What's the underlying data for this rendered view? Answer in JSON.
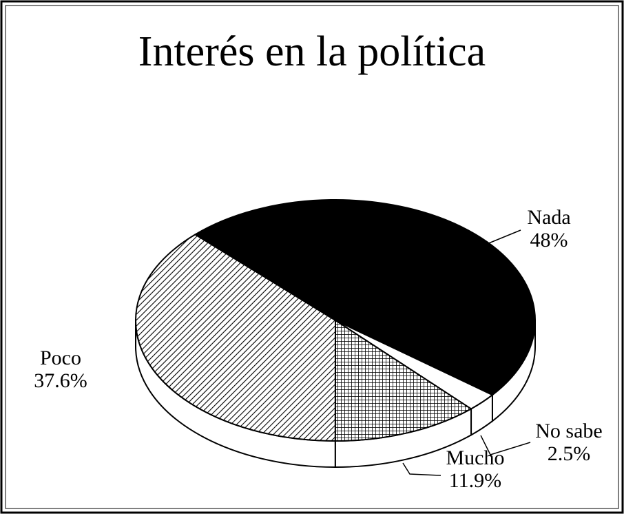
{
  "chart_data": {
    "type": "pie",
    "title": "Interés en la política",
    "categories": [
      "Nada",
      "No sabe",
      "Mucho",
      "Poco"
    ],
    "values": [
      48,
      2.5,
      11.9,
      37.6
    ],
    "value_labels": [
      "48%",
      "2.5%",
      "11.9%",
      "37.6%"
    ],
    "colors": [
      "#000000",
      "#ffffff",
      "#ffffff",
      "#ffffff"
    ],
    "patterns": [
      "solid",
      "solid",
      "crosshatch",
      "diagonal"
    ]
  }
}
